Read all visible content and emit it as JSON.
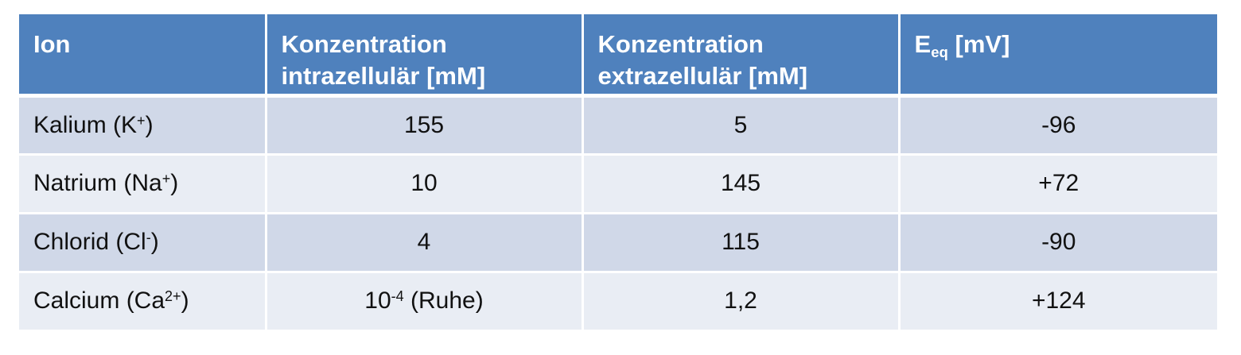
{
  "header": {
    "col1": "Ion",
    "col2_line1": "Konzentration",
    "col2_line2": "intrazellulär [mM]",
    "col3_line1": "Konzentration",
    "col3_line2": "extrazellulär [mM]",
    "col4_main": "E",
    "col4_sub": "eq",
    "col4_unit": " [mV]"
  },
  "rows": [
    {
      "ion": "Kalium (K",
      "ion_sup": "+",
      "ion_end": ")",
      "intra": "155",
      "intra_sup": "",
      "intra_suffix": "",
      "extra": "5",
      "eeq": "-96"
    },
    {
      "ion": "Natrium (Na",
      "ion_sup": "+",
      "ion_end": ")",
      "intra": "10",
      "intra_sup": "",
      "intra_suffix": "",
      "extra": "145",
      "eeq": "+72"
    },
    {
      "ion": "Chlorid (Cl",
      "ion_sup": "-",
      "ion_end": ")",
      "intra": "4",
      "intra_sup": "",
      "intra_suffix": "",
      "extra": "115",
      "eeq": "-90"
    },
    {
      "ion": "Calcium (Ca",
      "ion_sup": "2+",
      "ion_end": ")",
      "intra": "10",
      "intra_sup": "-4",
      "intra_suffix": " (Ruhe)",
      "extra": "1,2",
      "eeq": "+124"
    }
  ],
  "colors": {
    "header_bg": "#4f81bd",
    "row_odd_bg": "#d0d8e8",
    "row_even_bg": "#e9edf4"
  }
}
